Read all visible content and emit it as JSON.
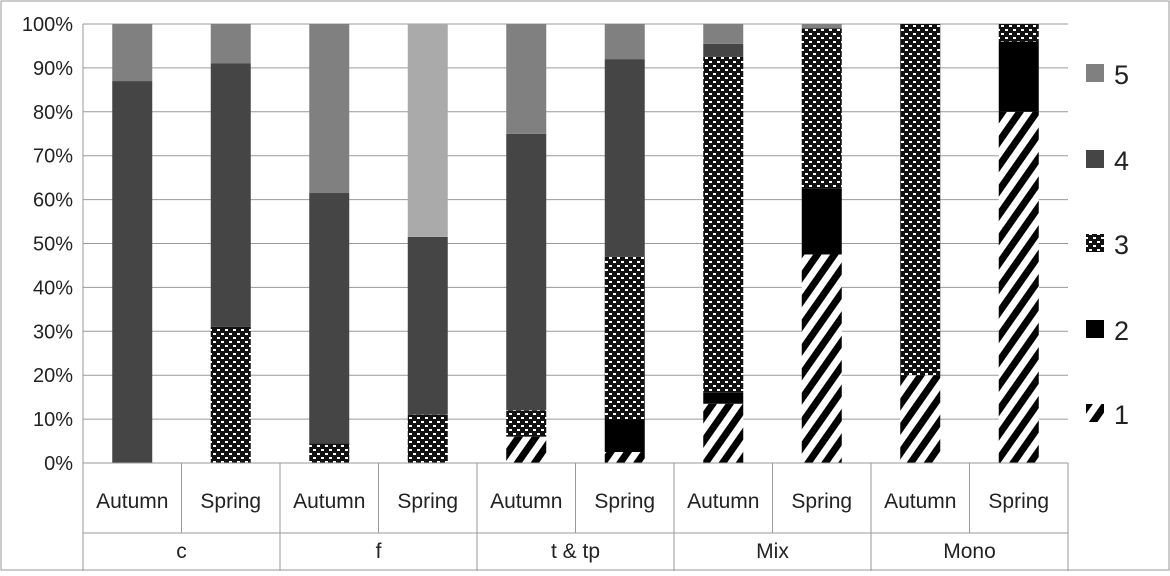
{
  "chart_data": {
    "type": "bar",
    "stacked": true,
    "percent": true,
    "ylim": [
      0,
      100
    ],
    "y_ticks": [
      "0%",
      "10%",
      "20%",
      "30%",
      "40%",
      "50%",
      "60%",
      "70%",
      "80%",
      "90%",
      "100%"
    ],
    "y_tick_values": [
      0,
      10,
      20,
      30,
      40,
      50,
      60,
      70,
      80,
      90,
      100
    ],
    "grid": true,
    "legend_position": "right",
    "groups": [
      "c",
      "f",
      "t & tp",
      "Mix",
      "Mono"
    ],
    "categories": [
      {
        "group": "c",
        "label": "Autumn"
      },
      {
        "group": "c",
        "label": "Spring"
      },
      {
        "group": "f",
        "label": "Autumn"
      },
      {
        "group": "f",
        "label": "Spring"
      },
      {
        "group": "t & tp",
        "label": "Autumn"
      },
      {
        "group": "t & tp",
        "label": "Spring"
      },
      {
        "group": "Mix",
        "label": "Autumn"
      },
      {
        "group": "Mix",
        "label": "Spring"
      },
      {
        "group": "Mono",
        "label": "Autumn"
      },
      {
        "group": "Mono",
        "label": "Spring"
      }
    ],
    "series": [
      {
        "name": "1",
        "pattern": "diagonal-stripes",
        "color": "#000000",
        "values": [
          0,
          0,
          0,
          0,
          6,
          2.5,
          13.5,
          47.5,
          20,
          80
        ]
      },
      {
        "name": "2",
        "pattern": "solid",
        "color": "#000000",
        "values": [
          0,
          0,
          0,
          0,
          0,
          7.5,
          2.5,
          15,
          0,
          16
        ]
      },
      {
        "name": "3",
        "pattern": "dotted-checker",
        "color": "#111111",
        "values": [
          0,
          31,
          4.5,
          11,
          6,
          37,
          76.5,
          36.5,
          80,
          4
        ]
      },
      {
        "name": "4",
        "pattern": "solid",
        "color": "#454545",
        "values": [
          87,
          60,
          57,
          40.5,
          63,
          45,
          3,
          0,
          0,
          0
        ]
      },
      {
        "name": "5",
        "pattern": "solid",
        "color": "#808080",
        "values": [
          13,
          9,
          38.5,
          48.5,
          25,
          8,
          4.5,
          1,
          0,
          0
        ]
      }
    ],
    "series_f_spring_5_color": "#aaaaaa"
  }
}
